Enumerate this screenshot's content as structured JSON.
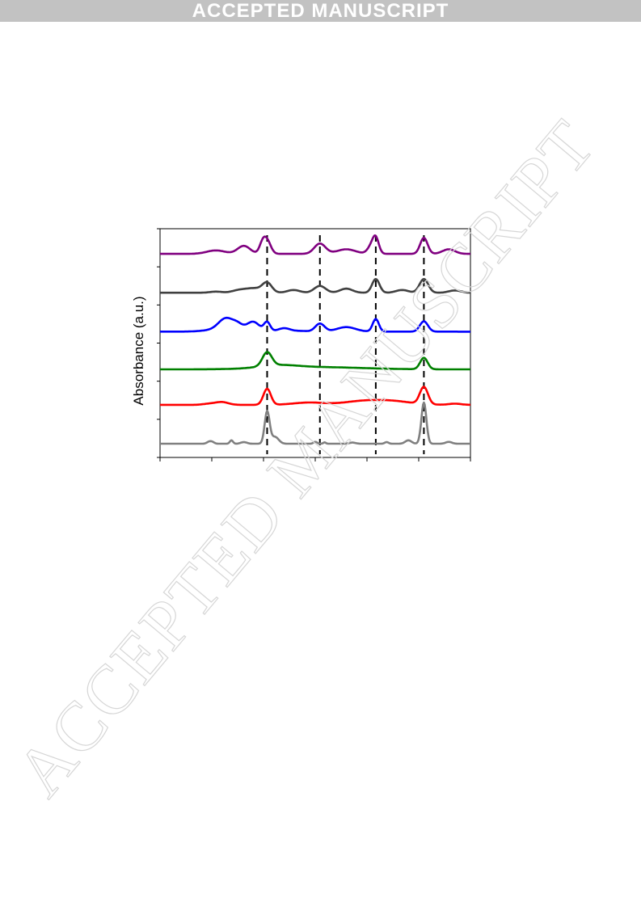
{
  "banner": {
    "text": "ACCEPTED MANUSCRIPT"
  },
  "watermark": {
    "text": "ACCEPTED MANUSCRIPT",
    "color": "#d6d6d6"
  },
  "chart_data": {
    "type": "line",
    "ylabel": "Absorbance (a.u.)",
    "xlabel": "",
    "x_ticks_count": 7,
    "y_ticks_count": 7,
    "tick_labels_visible": false,
    "grid": false,
    "reference_lines": {
      "style": "dashed",
      "color": "#000000",
      "x": [
        0.345,
        0.515,
        0.695,
        0.85
      ]
    },
    "series": [
      {
        "color": "#800080",
        "offset": 0.89,
        "peaks": [
          [
            0.18,
            0.015,
            0.03
          ],
          [
            0.27,
            0.035,
            0.02
          ],
          [
            0.33,
            0.04,
            0.01
          ],
          [
            0.345,
            0.055,
            0.012
          ],
          [
            0.515,
            0.045,
            0.018
          ],
          [
            0.6,
            0.02,
            0.03
          ],
          [
            0.68,
            0.03,
            0.012
          ],
          [
            0.695,
            0.065,
            0.01
          ],
          [
            0.85,
            0.07,
            0.012
          ],
          [
            0.93,
            0.02,
            0.02
          ]
        ]
      },
      {
        "color": "#404040",
        "offset": 0.72,
        "peaks": [
          [
            0.18,
            0.005,
            0.02
          ],
          [
            0.25,
            0.008,
            0.02
          ],
          [
            0.3,
            0.02,
            0.03
          ],
          [
            0.345,
            0.04,
            0.015
          ],
          [
            0.43,
            0.012,
            0.02
          ],
          [
            0.515,
            0.03,
            0.018
          ],
          [
            0.6,
            0.018,
            0.02
          ],
          [
            0.695,
            0.06,
            0.012
          ],
          [
            0.78,
            0.012,
            0.02
          ],
          [
            0.85,
            0.06,
            0.014
          ],
          [
            0.95,
            0.01,
            0.02
          ]
        ]
      },
      {
        "color": "#0000ff",
        "offset": 0.55,
        "peaks": [
          [
            0.2,
            0.02,
            0.02
          ],
          [
            0.22,
            0.03,
            0.02
          ],
          [
            0.215,
            0.015,
            0.05
          ],
          [
            0.25,
            0.02,
            0.015
          ],
          [
            0.3,
            0.04,
            0.02
          ],
          [
            0.345,
            0.04,
            0.01
          ],
          [
            0.4,
            0.015,
            0.02
          ],
          [
            0.455,
            0.003,
            0.02
          ],
          [
            0.515,
            0.035,
            0.015
          ],
          [
            0.6,
            0.02,
            0.03
          ],
          [
            0.695,
            0.055,
            0.01
          ],
          [
            0.85,
            0.045,
            0.013
          ]
        ]
      },
      {
        "color": "#008000",
        "offset": 0.385,
        "peaks": [
          [
            0.345,
            0.06,
            0.015
          ],
          [
            0.38,
            0.012,
            0.06
          ],
          [
            0.5,
            0.01,
            0.15
          ],
          [
            0.85,
            0.05,
            0.012
          ]
        ]
      },
      {
        "color": "#ff0000",
        "offset": 0.23,
        "peaks": [
          [
            0.16,
            0.005,
            0.02
          ],
          [
            0.2,
            0.012,
            0.02
          ],
          [
            0.345,
            0.07,
            0.012
          ],
          [
            0.48,
            0.01,
            0.05
          ],
          [
            0.65,
            0.015,
            0.06
          ],
          [
            0.75,
            0.015,
            0.06
          ],
          [
            0.85,
            0.075,
            0.013
          ],
          [
            0.95,
            0.005,
            0.02
          ]
        ]
      },
      {
        "color": "#808080",
        "offset": 0.06,
        "peaks": [
          [
            0.16,
            0.01,
            0.008
          ],
          [
            0.17,
            0.004,
            0.006
          ],
          [
            0.23,
            0.015,
            0.005
          ],
          [
            0.27,
            0.007,
            0.01
          ],
          [
            0.345,
            0.14,
            0.008
          ],
          [
            0.37,
            0.03,
            0.012
          ],
          [
            0.5,
            0.008,
            0.006
          ],
          [
            0.53,
            0.006,
            0.004
          ],
          [
            0.62,
            0.005,
            0.01
          ],
          [
            0.73,
            0.007,
            0.006
          ],
          [
            0.8,
            0.015,
            0.01
          ],
          [
            0.85,
            0.18,
            0.008
          ],
          [
            0.93,
            0.008,
            0.01
          ]
        ]
      }
    ]
  }
}
